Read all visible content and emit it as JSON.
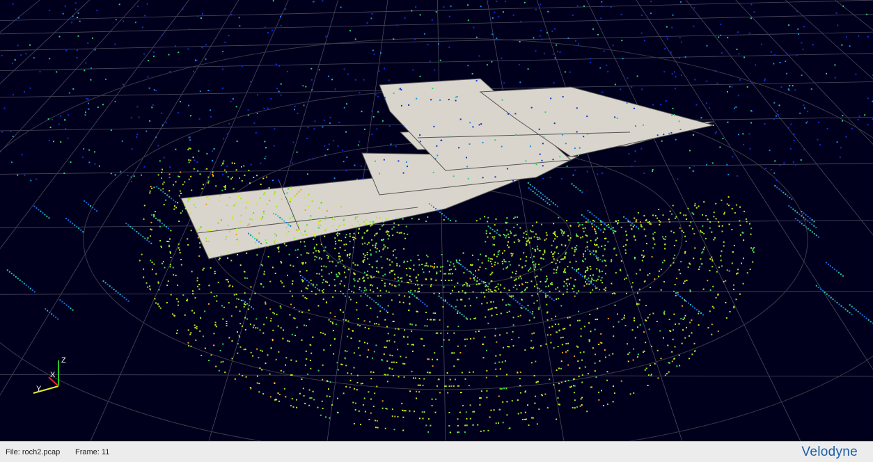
{
  "viewport": {
    "axes": {
      "z": "Z",
      "x": "X",
      "y": "Y"
    }
  },
  "status_bar": {
    "file": "File: roch2.pcap",
    "frame": "Frame: 11",
    "logo": "Velodyne"
  }
}
